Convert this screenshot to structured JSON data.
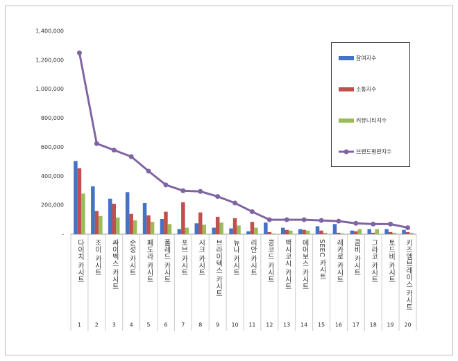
{
  "chart_data": {
    "type": "bar",
    "categories": [
      "다이치 카시트",
      "조이 카시트",
      "싸이벡스 카시트",
      "순성 카시트",
      "페도라 카시트",
      "폴레드 카시트",
      "포브 카시트",
      "시크 카시트",
      "브라이텍스 카시트",
      "뉴나 카시트",
      "리안 카시트",
      "콩코드 카시트",
      "맥시코시 카시트",
      "에어보스 카시트",
      "SEEC 카시트",
      "레카로 카시트",
      "콤비 카시트",
      "그라코 카시트",
      "토드비 카시트",
      "키즈엠브레이스 카시트"
    ],
    "category_numbers": [
      1,
      2,
      3,
      4,
      5,
      6,
      7,
      8,
      9,
      10,
      11,
      12,
      13,
      14,
      15,
      16,
      17,
      18,
      19,
      20
    ],
    "series": [
      {
        "name": "참여지수",
        "color": "#4472c4",
        "values": [
          505000,
          330000,
          245000,
          290000,
          215000,
          105000,
          35000,
          75000,
          45000,
          40000,
          20000,
          80000,
          45000,
          35000,
          55000,
          70000,
          25000,
          35000,
          35000,
          30000
        ]
      },
      {
        "name": "소통지수",
        "color": "#c0504d",
        "values": [
          455000,
          160000,
          210000,
          140000,
          130000,
          155000,
          220000,
          150000,
          120000,
          110000,
          85000,
          15000,
          30000,
          30000,
          25000,
          10000,
          20000,
          10000,
          15000,
          15000
        ]
      },
      {
        "name": "커뮤니티지수",
        "color": "#9bbb59",
        "values": [
          280000,
          125000,
          115000,
          95000,
          85000,
          70000,
          45000,
          65000,
          80000,
          60000,
          45000,
          5000,
          25000,
          25000,
          10000,
          5000,
          35000,
          35000,
          10000,
          10000
        ]
      },
      {
        "name": "브랜드평판지수",
        "color": "#8064a2",
        "type": "line",
        "values": [
          1250000,
          625000,
          580000,
          535000,
          435000,
          340000,
          300000,
          295000,
          260000,
          215000,
          155000,
          100000,
          100000,
          100000,
          95000,
          90000,
          75000,
          70000,
          70000,
          45000
        ]
      }
    ],
    "ylim": [
      0,
      1400000
    ],
    "yticks": [
      {
        "value": 0,
        "label": "-"
      },
      {
        "value": 200000,
        "label": "200,000"
      },
      {
        "value": 400000,
        "label": "400,000"
      },
      {
        "value": 600000,
        "label": "600,000"
      },
      {
        "value": 800000,
        "label": "800,000"
      },
      {
        "value": 1000000,
        "label": "1,000,000"
      },
      {
        "value": 1200000,
        "label": "1,200,000"
      },
      {
        "value": 1400000,
        "label": "1,400,000"
      }
    ],
    "legend": "top-right"
  }
}
